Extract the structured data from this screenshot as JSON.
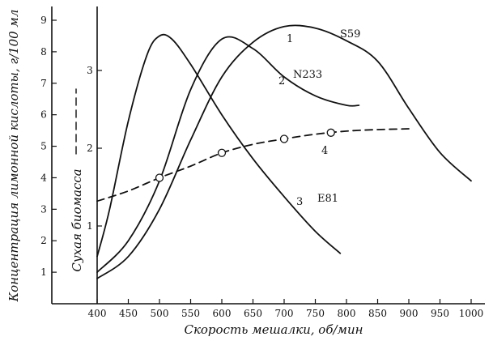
{
  "chart_data": {
    "type": "line",
    "title": "",
    "xlabel": "Скорость мешалки, об/мин",
    "ylabel_left": "Концентрация лимонной кислоты, г/100 мл",
    "ylabel_right": "Сухая биомасса",
    "xlim": [
      400,
      1000
    ],
    "ylim_left": [
      0,
      9
    ],
    "ylim_right": [
      0,
      3.7
    ],
    "x_ticks": [
      "400",
      "450",
      "500",
      "550",
      "600",
      "650",
      "700",
      "750",
      "800",
      "850",
      "900",
      "950",
      "1000"
    ],
    "y_left_ticks": [
      "1",
      "2",
      "3",
      "4",
      "5",
      "6",
      "7",
      "8",
      "9"
    ],
    "y_right_ticks": [
      "1",
      "2",
      "3"
    ],
    "grid": false,
    "series": [
      {
        "name": "S59",
        "number": "1",
        "axis": "left",
        "style": "solid",
        "x": [
          400,
          450,
          500,
          550,
          600,
          650,
          700,
          750,
          800,
          850,
          900,
          950,
          1000
        ],
        "y": [
          0.8,
          1.5,
          3.0,
          5.2,
          7.2,
          8.3,
          8.8,
          8.75,
          8.35,
          7.7,
          6.2,
          4.8,
          3.9
        ]
      },
      {
        "name": "N233",
        "number": "2",
        "axis": "left",
        "style": "solid",
        "x": [
          400,
          450,
          500,
          550,
          600,
          650,
          700,
          750,
          800,
          820
        ],
        "y": [
          1.0,
          2.0,
          3.9,
          6.8,
          8.4,
          8.1,
          7.2,
          6.6,
          6.3,
          6.3
        ]
      },
      {
        "name": "E81",
        "number": "3",
        "axis": "left",
        "style": "solid",
        "x": [
          400,
          420,
          450,
          480,
          500,
          520,
          550,
          600,
          650,
          700,
          750,
          790
        ],
        "y": [
          1.5,
          3.0,
          5.8,
          7.9,
          8.5,
          8.4,
          7.6,
          6.0,
          4.6,
          3.4,
          2.3,
          1.6
        ]
      },
      {
        "name": "",
        "number": "4",
        "axis": "right",
        "style": "dashed",
        "x": [
          400,
          450,
          500,
          550,
          600,
          650,
          700,
          750,
          800,
          850,
          900
        ],
        "y": [
          1.32,
          1.45,
          1.62,
          1.77,
          1.94,
          2.05,
          2.12,
          2.18,
          2.22,
          2.24,
          2.25
        ],
        "markers_x": [
          500,
          600,
          700,
          775
        ],
        "markers_y": [
          1.62,
          1.94,
          2.12,
          2.2
        ]
      }
    ]
  }
}
